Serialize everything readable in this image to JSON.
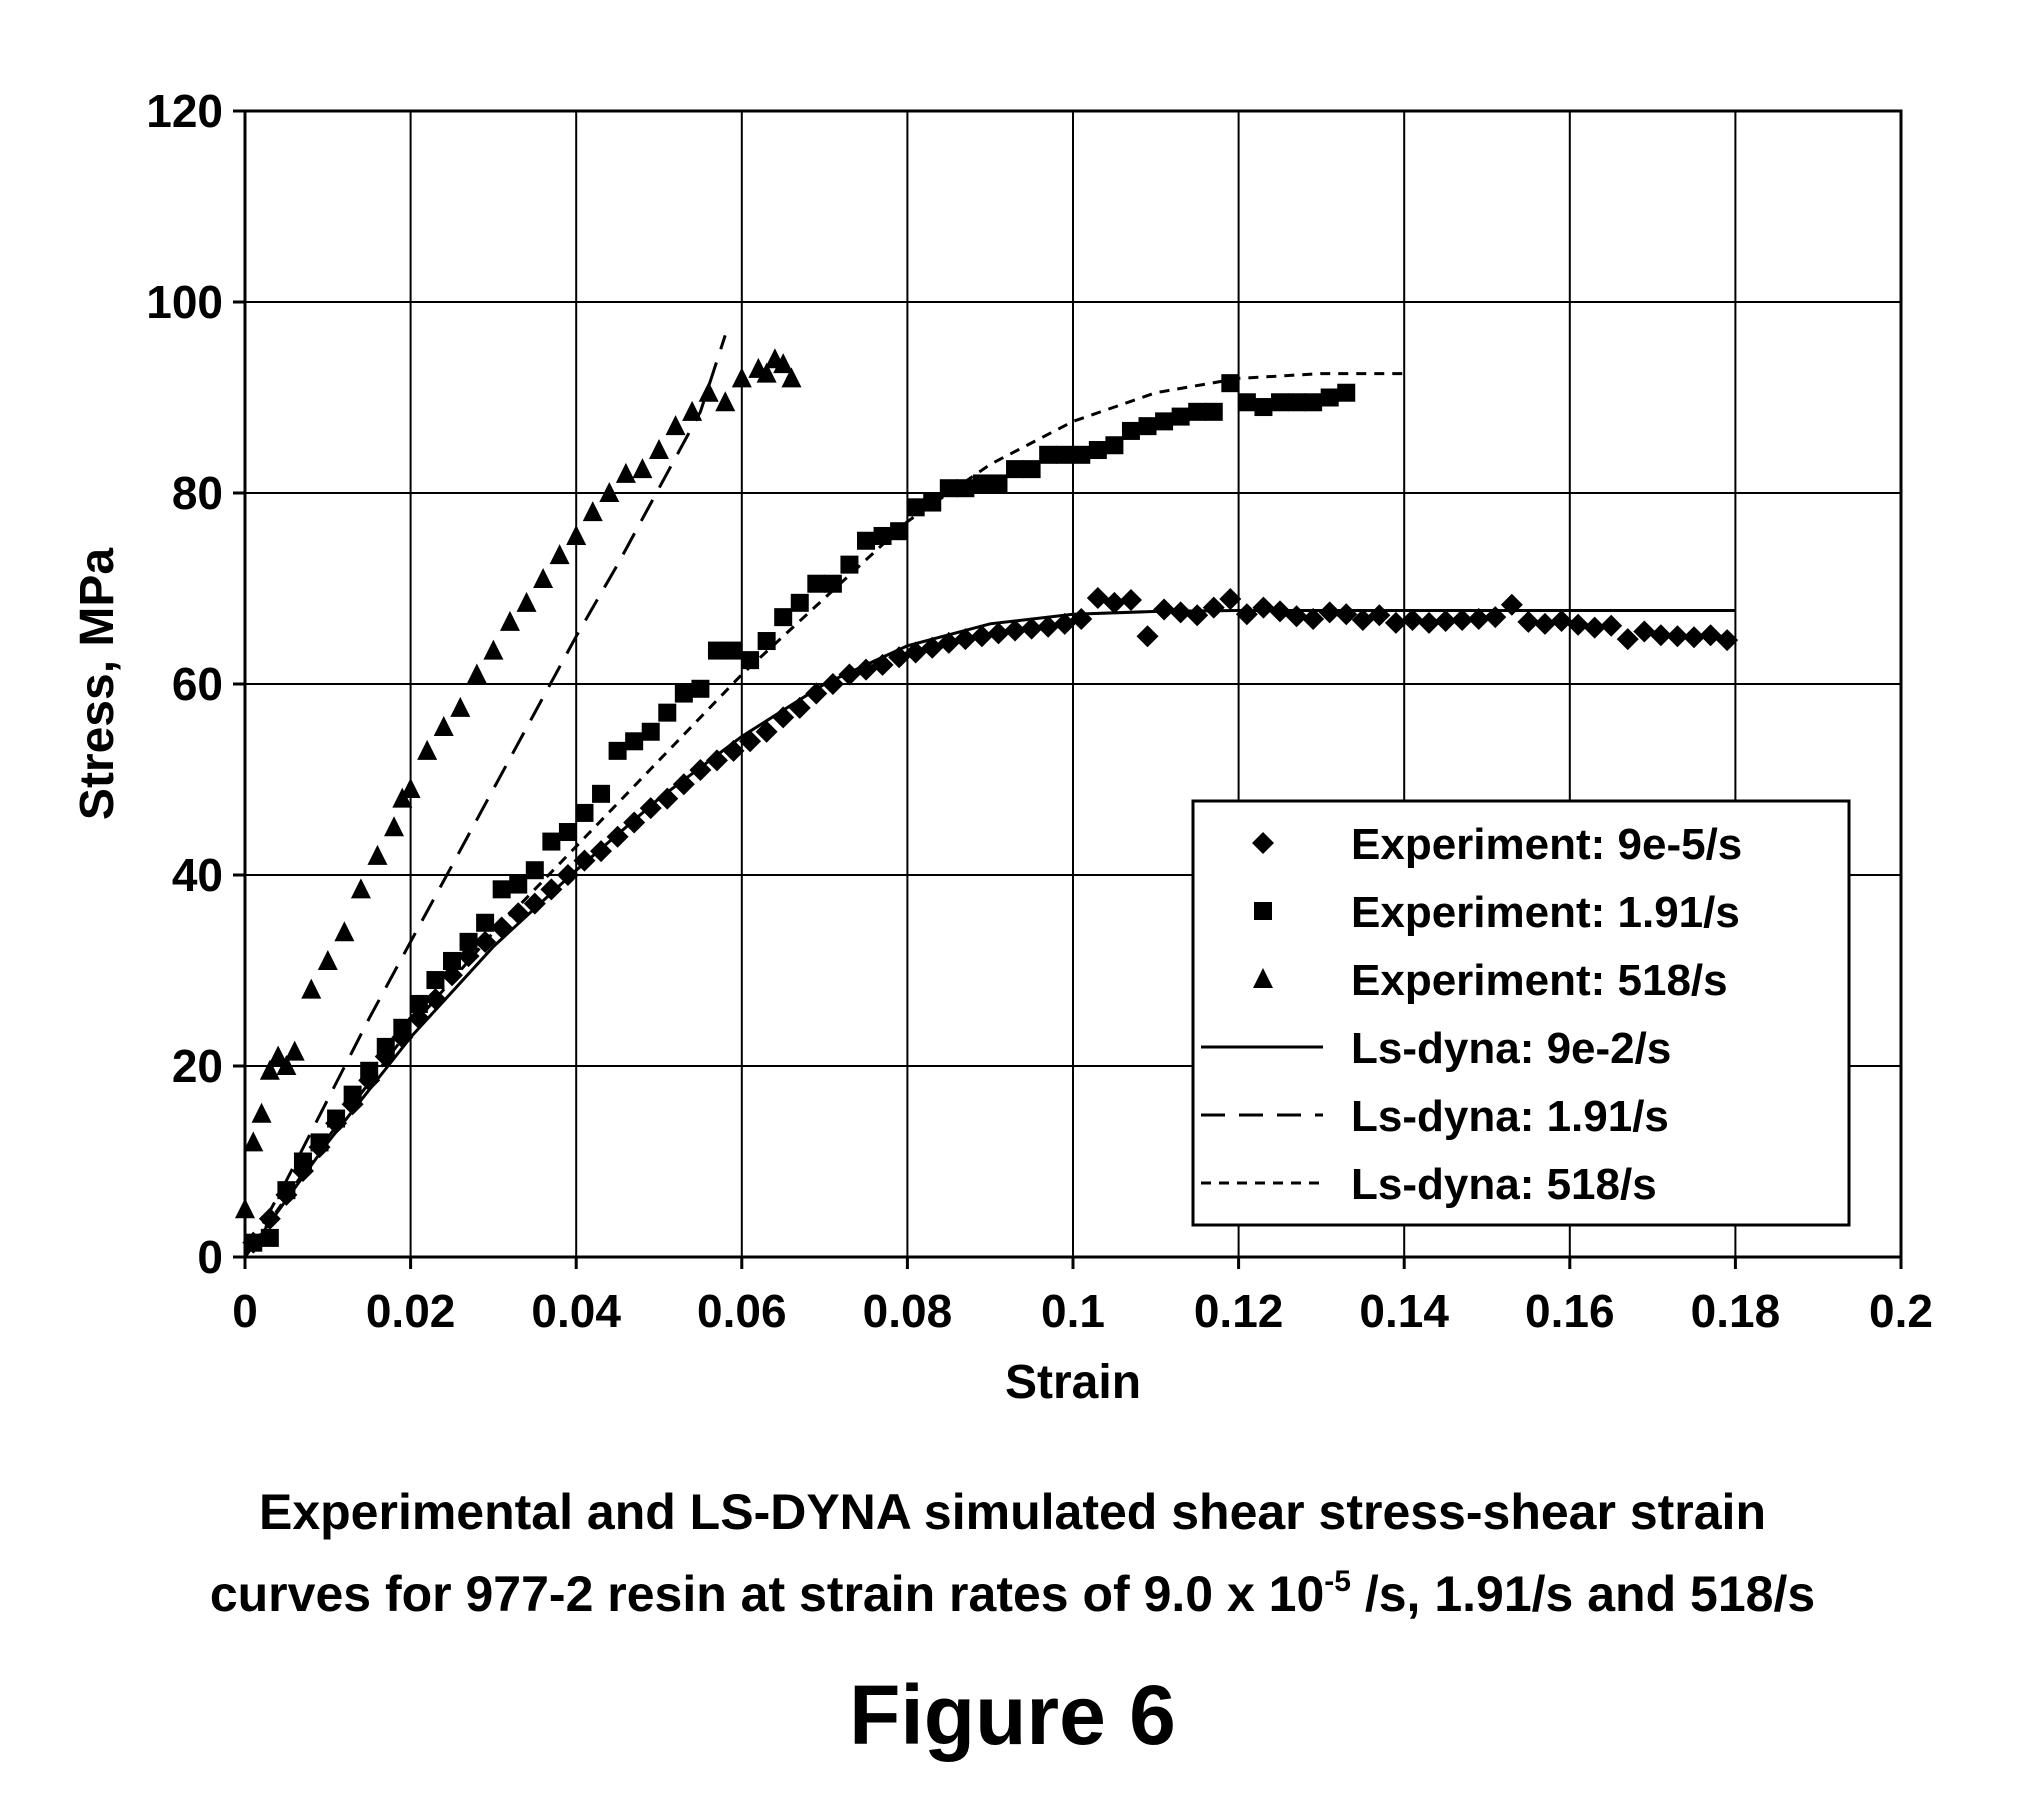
{
  "chart_data": {
    "type": "scatter",
    "xlabel": "Strain",
    "ylabel": "Stress, MPa",
    "xlim": [
      0,
      0.2
    ],
    "ylim": [
      0,
      120
    ],
    "x_ticks": [
      "0",
      "0.02",
      "0.04",
      "0.06",
      "0.08",
      "0.1",
      "0.12",
      "0.14",
      "0.16",
      "0.18",
      "0.2"
    ],
    "x_tick_values": [
      0,
      0.02,
      0.04,
      0.06,
      0.08,
      0.1,
      0.12,
      0.14,
      0.16,
      0.18,
      0.2
    ],
    "y_ticks": [
      "0",
      "20",
      "40",
      "60",
      "80",
      "100",
      "120"
    ],
    "y_tick_values": [
      0,
      20,
      40,
      60,
      80,
      100,
      120
    ],
    "grid": true,
    "legend_position": "bottom-right",
    "series": [
      {
        "name": "Experiment: 9e-5/s",
        "kind": "marker",
        "marker": "diamond",
        "x": [
          0.001,
          0.003,
          0.005,
          0.007,
          0.009,
          0.011,
          0.013,
          0.015,
          0.017,
          0.019,
          0.021,
          0.023,
          0.025,
          0.027,
          0.029,
          0.031,
          0.033,
          0.035,
          0.037,
          0.039,
          0.041,
          0.043,
          0.045,
          0.047,
          0.049,
          0.051,
          0.053,
          0.055,
          0.057,
          0.059,
          0.061,
          0.063,
          0.065,
          0.067,
          0.069,
          0.071,
          0.073,
          0.075,
          0.077,
          0.079,
          0.081,
          0.083,
          0.085,
          0.087,
          0.089,
          0.091,
          0.093,
          0.095,
          0.097,
          0.099,
          0.101,
          0.103,
          0.105,
          0.107,
          0.109,
          0.111,
          0.113,
          0.115,
          0.117,
          0.119,
          0.121,
          0.123,
          0.125,
          0.127,
          0.129,
          0.131,
          0.133,
          0.135,
          0.137,
          0.139,
          0.141,
          0.143,
          0.145,
          0.147,
          0.149,
          0.151,
          0.153,
          0.155,
          0.157,
          0.159,
          0.161,
          0.163,
          0.165,
          0.167,
          0.169,
          0.171,
          0.173,
          0.175,
          0.177,
          0.179
        ],
        "y": [
          1.5,
          4,
          6.5,
          9,
          11.5,
          14,
          16,
          18.5,
          21,
          23,
          25,
          27,
          29.5,
          31.5,
          33,
          34.5,
          36,
          37,
          38.5,
          40,
          41.5,
          42.5,
          44,
          45.5,
          47,
          48,
          49.5,
          51,
          52,
          53,
          54,
          55,
          56.5,
          57.5,
          59,
          60,
          61,
          61.5,
          62,
          62.8,
          63.3,
          63.8,
          64.3,
          64.7,
          65,
          65.3,
          65.6,
          65.8,
          66,
          66.3,
          66.8,
          69,
          68.5,
          68.8,
          65,
          67.8,
          67.5,
          67.2,
          68,
          68.9,
          67.3,
          68,
          67.6,
          67.1,
          66.8,
          67.5,
          67.3,
          66.7,
          67.2,
          66.4,
          66.7,
          66.4,
          66.6,
          66.7,
          66.8,
          67,
          68.3,
          66.5,
          66.3,
          66.6,
          66.2,
          65.9,
          66.1,
          64.7,
          65.5,
          65.1,
          65,
          64.9,
          65.1,
          64.6
        ]
      },
      {
        "name": "Experiment: 1.91/s",
        "kind": "marker",
        "marker": "square",
        "x": [
          0.001,
          0.003,
          0.005,
          0.007,
          0.009,
          0.011,
          0.013,
          0.015,
          0.017,
          0.019,
          0.021,
          0.023,
          0.025,
          0.027,
          0.029,
          0.031,
          0.033,
          0.035,
          0.037,
          0.039,
          0.041,
          0.043,
          0.045,
          0.047,
          0.049,
          0.051,
          0.053,
          0.055,
          0.057,
          0.059,
          0.061,
          0.063,
          0.065,
          0.067,
          0.069,
          0.071,
          0.073,
          0.075,
          0.077,
          0.079,
          0.081,
          0.083,
          0.085,
          0.087,
          0.089,
          0.091,
          0.093,
          0.095,
          0.097,
          0.099,
          0.101,
          0.103,
          0.105,
          0.107,
          0.109,
          0.111,
          0.113,
          0.115,
          0.117,
          0.119,
          0.121,
          0.123,
          0.125,
          0.127,
          0.129,
          0.131,
          0.133
        ],
        "y": [
          1.5,
          2,
          7,
          10,
          12,
          14.5,
          17,
          19.5,
          22,
          24,
          26.5,
          29,
          31,
          33,
          35,
          38.5,
          39,
          40.5,
          43.5,
          44.5,
          46.5,
          48.5,
          53,
          54,
          55,
          57,
          59,
          59.5,
          63.5,
          63.5,
          62.5,
          64.5,
          67,
          68.5,
          70.5,
          70.5,
          72.5,
          75,
          75.5,
          76,
          78.5,
          79,
          80.5,
          80.5,
          81,
          81,
          82.5,
          82.5,
          84,
          84,
          84,
          84.5,
          85,
          86.5,
          87,
          87.5,
          88,
          88.5,
          88.5,
          91.5,
          89.5,
          89,
          89.5,
          89.5,
          89.5,
          90,
          90.5
        ]
      },
      {
        "name": "Experiment: 518/s",
        "kind": "marker",
        "marker": "triangle",
        "x": [
          0,
          0.001,
          0.002,
          0.003,
          0.004,
          0.005,
          0.006,
          0.008,
          0.01,
          0.012,
          0.014,
          0.016,
          0.018,
          0.019,
          0.02,
          0.022,
          0.024,
          0.026,
          0.028,
          0.03,
          0.032,
          0.034,
          0.036,
          0.038,
          0.04,
          0.042,
          0.044,
          0.046,
          0.048,
          0.05,
          0.052,
          0.054,
          0.056,
          0.058,
          0.06,
          0.062,
          0.063,
          0.064,
          0.065,
          0.066
        ],
        "y": [
          5,
          12,
          15,
          19.5,
          21,
          20,
          21.5,
          28,
          31,
          34,
          38.5,
          42,
          45,
          48,
          49,
          53,
          55.5,
          57.5,
          61,
          63.5,
          66.5,
          68.5,
          71,
          73.5,
          75.5,
          78,
          80,
          82,
          82.5,
          84.5,
          87,
          88.5,
          90.5,
          89.5,
          92,
          93,
          92.5,
          94,
          93.5,
          92
        ]
      },
      {
        "name": "Ls-dyna: 9e-2/s",
        "kind": "line",
        "dash": "solid",
        "x": [
          0,
          0.01,
          0.02,
          0.03,
          0.04,
          0.05,
          0.06,
          0.07,
          0.08,
          0.09,
          0.1,
          0.11,
          0.12,
          0.13,
          0.14,
          0.15,
          0.16,
          0.17,
          0.18
        ],
        "y": [
          0,
          12,
          23,
          32.5,
          40.5,
          48,
          54.5,
          60,
          64,
          66.3,
          67.3,
          67.6,
          67.7,
          67.7,
          67.7,
          67.7,
          67.7,
          67.7,
          67.7
        ]
      },
      {
        "name": "Ls-dyna: 1.91/s",
        "kind": "line",
        "dash": "long",
        "x": [
          0,
          0.005,
          0.01,
          0.015,
          0.02,
          0.025,
          0.03,
          0.035,
          0.04,
          0.045,
          0.05,
          0.055,
          0.058
        ],
        "y": [
          0,
          8,
          16.5,
          25,
          33,
          41,
          49,
          57,
          65,
          72.5,
          80.5,
          88.5,
          96.5
        ]
      },
      {
        "name": "Ls-dyna: 518/s",
        "kind": "line",
        "dash": "short",
        "x": [
          0,
          0.01,
          0.02,
          0.03,
          0.04,
          0.05,
          0.06,
          0.07,
          0.08,
          0.09,
          0.1,
          0.11,
          0.12,
          0.13,
          0.14
        ],
        "y": [
          0,
          12.5,
          24,
          34,
          43,
          52,
          61,
          69,
          77,
          83,
          87.5,
          90.5,
          92,
          92.5,
          92.5
        ]
      }
    ]
  },
  "caption": {
    "line1": "Experimental and LS-DYNA simulated shear stress-shear strain",
    "line2_prefix": "curves for 977-2 resin at strain rates of 9.0 x 10",
    "line2_sup": "-5",
    "line2_suffix": " /s, 1.91/s and 518/s",
    "figure_label": "Figure 6"
  }
}
